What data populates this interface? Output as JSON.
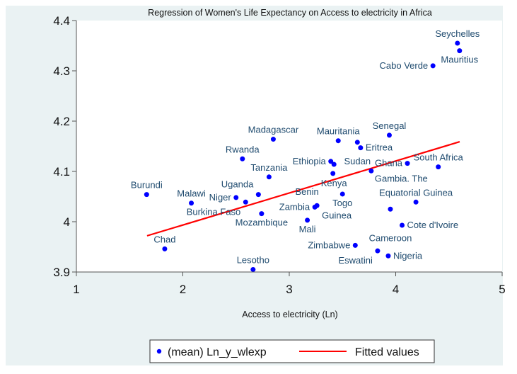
{
  "chart_data": {
    "type": "scatter",
    "title": "Regression of Women's Life Expectancy on Access to electricity in Africa",
    "xlabel": "Access to electricity (Ln)",
    "ylabel": "",
    "xlim": [
      1,
      5
    ],
    "ylim": [
      3.9,
      4.4
    ],
    "xticks": [
      "1",
      "2",
      "3",
      "4",
      "5"
    ],
    "yticks": [
      "3.9",
      "4",
      "4.1",
      "4.2",
      "4.3",
      "4.4"
    ],
    "grid": false,
    "legend_position": "bottom",
    "legend": [
      "(mean) Ln_y_wlexp",
      "Fitted values"
    ],
    "colors": {
      "points": "#0000ff",
      "fit": "#ff0000",
      "labels": "#1e4a6e",
      "background": "#eaf2f3"
    },
    "points": [
      {
        "label": "Seychelles",
        "x": 4.58,
        "y": 4.355
      },
      {
        "label": "Mauritius",
        "x": 4.6,
        "y": 4.34
      },
      {
        "label": "Cabo Verde",
        "x": 4.35,
        "y": 4.31
      },
      {
        "label": "Senegal",
        "x": 3.94,
        "y": 4.172
      },
      {
        "label": "Madagascar",
        "x": 2.85,
        "y": 4.164
      },
      {
        "label": "Mauritania",
        "x": 3.46,
        "y": 4.161
      },
      {
        "label": "Sudan",
        "x": 3.64,
        "y": 4.158
      },
      {
        "label": "Eritrea",
        "x": 3.67,
        "y": 4.147
      },
      {
        "label": "Rwanda",
        "x": 2.56,
        "y": 4.125
      },
      {
        "label": "Ethiopia",
        "x": 3.39,
        "y": 4.12
      },
      {
        "label": "Ghana",
        "x": 4.11,
        "y": 4.116
      },
      {
        "label": "Kenya",
        "x": 3.42,
        "y": 4.114
      },
      {
        "label": "South Africa",
        "x": 4.4,
        "y": 4.109
      },
      {
        "label": "Gambia. The",
        "x": 3.77,
        "y": 4.101
      },
      {
        "label": "Benin",
        "x": 3.41,
        "y": 4.096
      },
      {
        "label": "Tanzania",
        "x": 2.81,
        "y": 4.089
      },
      {
        "label": "Burundi",
        "x": 1.66,
        "y": 4.054
      },
      {
        "label": "Togo",
        "x": 3.5,
        "y": 4.055
      },
      {
        "label": "Uganda",
        "x": 2.71,
        "y": 4.054
      },
      {
        "label": "Niger",
        "x": 2.5,
        "y": 4.048
      },
      {
        "label": "Burkina Faso",
        "x": 2.59,
        "y": 4.039
      },
      {
        "label": "Equatorial Guinea",
        "x": 4.19,
        "y": 4.039
      },
      {
        "label": "Malawi",
        "x": 2.08,
        "y": 4.037
      },
      {
        "label": "Guinea",
        "x": 3.26,
        "y": 4.032
      },
      {
        "label": "Zambia",
        "x": 3.24,
        "y": 4.029
      },
      {
        "label": "Cameroon",
        "x": 3.95,
        "y": 4.025
      },
      {
        "label": "Mozambique",
        "x": 2.74,
        "y": 4.016
      },
      {
        "label": "Mali",
        "x": 3.17,
        "y": 4.003
      },
      {
        "label": "Cote d'Ivoire",
        "x": 4.06,
        "y": 3.993
      },
      {
        "label": "Zimbabwe",
        "x": 3.62,
        "y": 3.953
      },
      {
        "label": "Chad",
        "x": 1.83,
        "y": 3.946
      },
      {
        "label": "Eswatini",
        "x": 3.83,
        "y": 3.942
      },
      {
        "label": "Nigeria",
        "x": 3.93,
        "y": 3.932
      },
      {
        "label": "Lesotho",
        "x": 2.66,
        "y": 3.905
      }
    ],
    "fit": {
      "x": [
        1.664,
        4.601
      ],
      "y": [
        3.972,
        4.159
      ]
    }
  }
}
